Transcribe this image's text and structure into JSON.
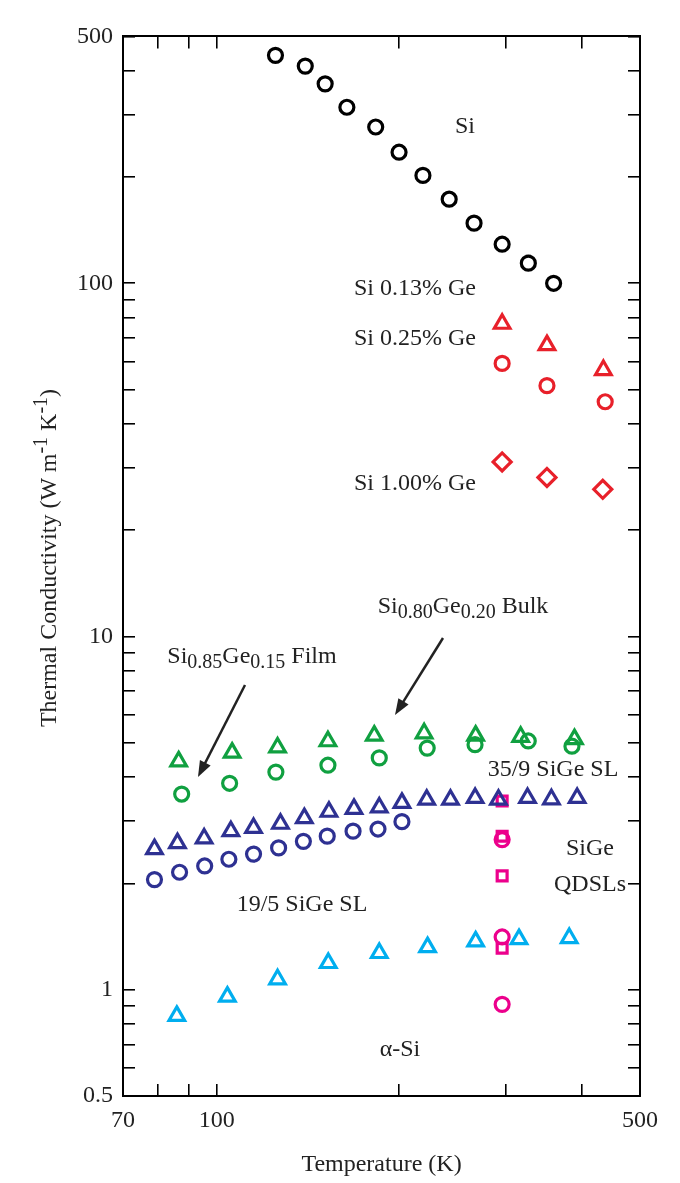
{
  "chart_data": {
    "type": "scatter",
    "xlabel": "Temperature (K)",
    "ylabel": "Thermal Conductivity (W m$^{-1}$ K$^{-1}$)",
    "log": "xy",
    "grid": false,
    "legend": false,
    "xlim": [
      70,
      500
    ],
    "xticks": [
      70,
      {
        "value": 80,
        "label": null
      },
      {
        "value": 90,
        "label": null
      },
      100,
      {
        "value": 200,
        "label": null
      },
      {
        "value": 300,
        "label": null
      },
      {
        "value": 400,
        "label": null
      },
      500
    ],
    "ylim": [
      0.5,
      500
    ],
    "yticks": [
      0.5,
      {
        "value": 0.6,
        "label": null
      },
      {
        "value": 0.7,
        "label": null
      },
      {
        "value": 0.8,
        "label": null
      },
      {
        "value": 0.9,
        "label": null
      },
      1,
      {
        "value": 2,
        "label": null
      },
      {
        "value": 3,
        "label": null
      },
      {
        "value": 4,
        "label": null
      },
      {
        "value": 5,
        "label": null
      },
      {
        "value": 6,
        "label": null
      },
      {
        "value": 7,
        "label": null
      },
      {
        "value": 8,
        "label": null
      },
      {
        "value": 9,
        "label": null
      },
      10,
      {
        "value": 20,
        "label": null
      },
      {
        "value": 30,
        "label": null
      },
      {
        "value": 40,
        "label": null
      },
      {
        "value": 50,
        "label": null
      },
      {
        "value": 60,
        "label": null
      },
      {
        "value": 70,
        "label": null
      },
      {
        "value": 80,
        "label": null
      },
      {
        "value": 90,
        "label": null
      },
      100,
      {
        "value": 200,
        "label": null
      },
      {
        "value": 300,
        "label": null
      },
      {
        "value": 400,
        "label": null
      },
      500
    ],
    "series": [
      {
        "color": "#000000",
        "marker": "circle",
        "x": [
          125,
          140,
          151,
          164,
          183,
          200,
          219,
          242,
          266,
          296,
          327,
          360
        ],
        "values": [
          442,
          412,
          367,
          315,
          277,
          235,
          202,
          173,
          148,
          129,
          114,
          100
        ]
      },
      {
        "color": "#e8202a",
        "marker": "triangle",
        "x": [
          296,
          351,
          435
        ],
        "values": [
          76.8,
          66.8,
          56.8
        ]
      },
      {
        "color": "#e8202a",
        "marker": "circle",
        "x": [
          296,
          351,
          438
        ],
        "values": [
          59.3,
          51.3,
          46.2
        ]
      },
      {
        "color": "#e8202a",
        "marker": "diamond",
        "x": [
          296,
          351,
          434
        ],
        "values": [
          31.2,
          28.2,
          26.1
        ]
      },
      {
        "color": "#10a040",
        "marker": "triangle",
        "x": [
          86.5,
          106,
          126,
          152.6,
          182,
          220,
          267.6,
          317.6,
          389.7
        ],
        "values": [
          4.43,
          4.69,
          4.85,
          5.05,
          5.24,
          5.32,
          5.24,
          5.2,
          5.12
        ]
      },
      {
        "color": "#10a040",
        "marker": "circle",
        "x": [
          87.5,
          105,
          125.2,
          152.6,
          185.5,
          222.6,
          267,
          326.9,
          386
        ],
        "values": [
          3.58,
          3.84,
          4.13,
          4.32,
          4.53,
          4.83,
          4.94,
          5.06,
          4.89
        ]
      },
      {
        "color": "#2e3192",
        "marker": "triangle",
        "x": [
          78.9,
          86.1,
          95.3,
          105.5,
          115,
          127.4,
          139.5,
          153.2,
          168.5,
          185.5,
          202.2,
          222.2,
          243.2,
          267.1,
          291.9,
          326,
          357,
          393.7
        ],
        "values": [
          2.5,
          2.6,
          2.68,
          2.81,
          2.87,
          2.95,
          3.06,
          3.19,
          3.25,
          3.28,
          3.38,
          3.45,
          3.45,
          3.49,
          3.45,
          3.49,
          3.46,
          3.49
        ]
      },
      {
        "color": "#2e3192",
        "marker": "circle",
        "x": [
          78.9,
          86.8,
          95.5,
          104.7,
          115,
          126.5,
          139,
          152.2,
          167.9,
          184.6,
          202.2
        ],
        "values": [
          2.05,
          2.15,
          2.24,
          2.34,
          2.42,
          2.52,
          2.63,
          2.72,
          2.81,
          2.85,
          2.99
        ]
      },
      {
        "color": "#00aeef",
        "marker": "triangle",
        "x": [
          85.9,
          104.1,
          126,
          152.8,
          185.5,
          222.9,
          267.6,
          315.6,
          382
        ],
        "values": [
          0.843,
          0.956,
          1.07,
          1.19,
          1.27,
          1.32,
          1.37,
          1.39,
          1.4
        ]
      },
      {
        "color": "#ec008c",
        "marker": "circle",
        "x": [
          296,
          296,
          296
        ],
        "values": [
          2.66,
          1.41,
          0.909
        ]
      },
      {
        "color": "#ec008c",
        "marker": "square",
        "x": [
          296,
          296,
          296
        ],
        "values": [
          3.42,
          2.72,
          1.31
        ]
      },
      {
        "color": "#ec008c",
        "marker": "square",
        "x": [
          296
        ],
        "values": [
          2.1
        ]
      }
    ],
    "annotations": [
      "Si",
      "Si 0.13% Ge",
      "Si 0.25% Ge",
      "Si 1.00% Ge",
      "Si$_{0.85}$Ge$_{0.15}$ Film",
      "Si$_{0.80}$Ge$_{0.20}$ Bulk",
      "35/9 SiGe SL",
      "SiGe\nQDSLs",
      "19/5 SiGe SL",
      "α-Si"
    ]
  }
}
